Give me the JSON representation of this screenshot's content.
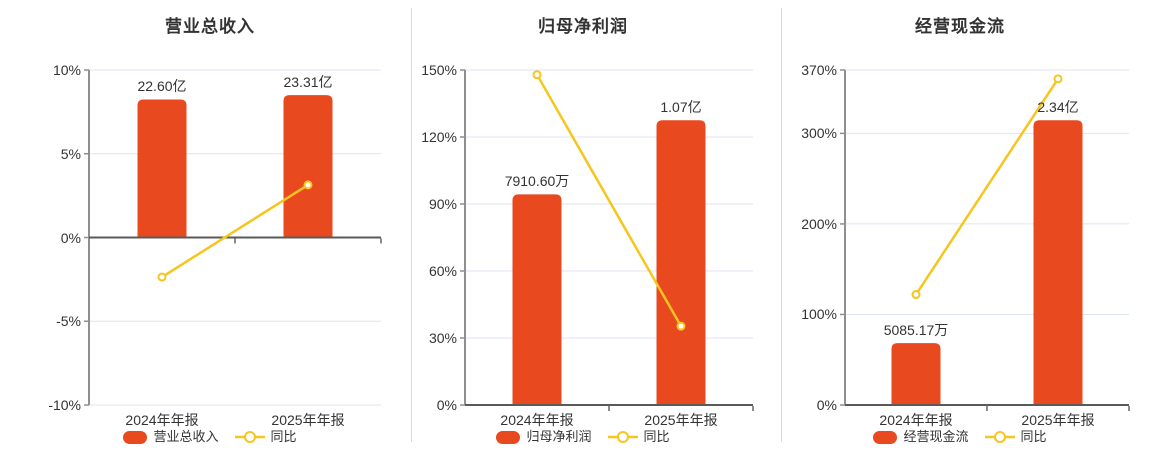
{
  "style": {
    "background": "#ffffff",
    "bar_color": "#e8491e",
    "line_color": "#f6c51f",
    "marker_fill": "#ffffff",
    "grid_color": "#dee5f2",
    "y_axis_line_color": "#8f8f8f",
    "zero_axis_line_color": "#5a5a5a",
    "tick_color": "#666666",
    "divider_color": "#d9d9d9",
    "text_color": "#333333"
  },
  "chart_data": [
    {
      "type": "bar",
      "title": "营业总收入",
      "categories": [
        "2024年年报",
        "2025年年报"
      ],
      "ylim": [
        -10,
        10
      ],
      "y_ticks": [
        {
          "value": 10,
          "label": "10%"
        },
        {
          "value": 5,
          "label": "5%"
        },
        {
          "value": 0,
          "label": "0%"
        },
        {
          "value": -5,
          "label": "-5%"
        },
        {
          "value": -10,
          "label": "-10%"
        }
      ],
      "grid": true,
      "legend_position": "bottom",
      "legend": [
        "营业总收入",
        "同比"
      ],
      "series": [
        {
          "name": "营业总收入",
          "type": "bar",
          "display_values": [
            "22.60亿",
            "23.31亿"
          ],
          "bar_top_on_axis": [
            8.24,
            8.5
          ]
        },
        {
          "name": "同比",
          "type": "line",
          "unit": "%",
          "values": [
            -2.36,
            3.14
          ]
        }
      ]
    },
    {
      "type": "bar",
      "title": "归母净利润",
      "categories": [
        "2024年年报",
        "2025年年报"
      ],
      "ylim": [
        0,
        150
      ],
      "y_ticks": [
        {
          "value": 150,
          "label": "150%"
        },
        {
          "value": 120,
          "label": "120%"
        },
        {
          "value": 90,
          "label": "90%"
        },
        {
          "value": 60,
          "label": "60%"
        },
        {
          "value": 30,
          "label": "30%"
        },
        {
          "value": 0,
          "label": "0%"
        }
      ],
      "grid": true,
      "legend_position": "bottom",
      "legend": [
        "归母净利润",
        "同比"
      ],
      "series": [
        {
          "name": "归母净利润",
          "type": "bar",
          "display_values": [
            "7910.60万",
            "1.07亿"
          ],
          "bar_top_on_axis": [
            94.3,
            127.5
          ]
        },
        {
          "name": "同比",
          "type": "line",
          "unit": "%",
          "values": [
            147.9,
            35.3
          ]
        }
      ]
    },
    {
      "type": "bar",
      "title": "经营现金流",
      "categories": [
        "2024年年报",
        "2025年年报"
      ],
      "ylim": [
        0,
        370
      ],
      "y_ticks": [
        {
          "value": 370,
          "label": "370%"
        },
        {
          "value": 300,
          "label": "300%"
        },
        {
          "value": 200,
          "label": "200%"
        },
        {
          "value": 100,
          "label": "100%"
        },
        {
          "value": 0,
          "label": "0%"
        }
      ],
      "grid": true,
      "legend_position": "bottom",
      "legend": [
        "经营现金流",
        "同比"
      ],
      "series": [
        {
          "name": "经营现金流",
          "type": "bar",
          "display_values": [
            "5085.17万",
            "2.34亿"
          ],
          "bar_top_on_axis": [
            68.3,
            314.5
          ]
        },
        {
          "name": "同比",
          "type": "line",
          "unit": "%",
          "values": [
            122.0,
            360.2
          ]
        }
      ]
    }
  ]
}
